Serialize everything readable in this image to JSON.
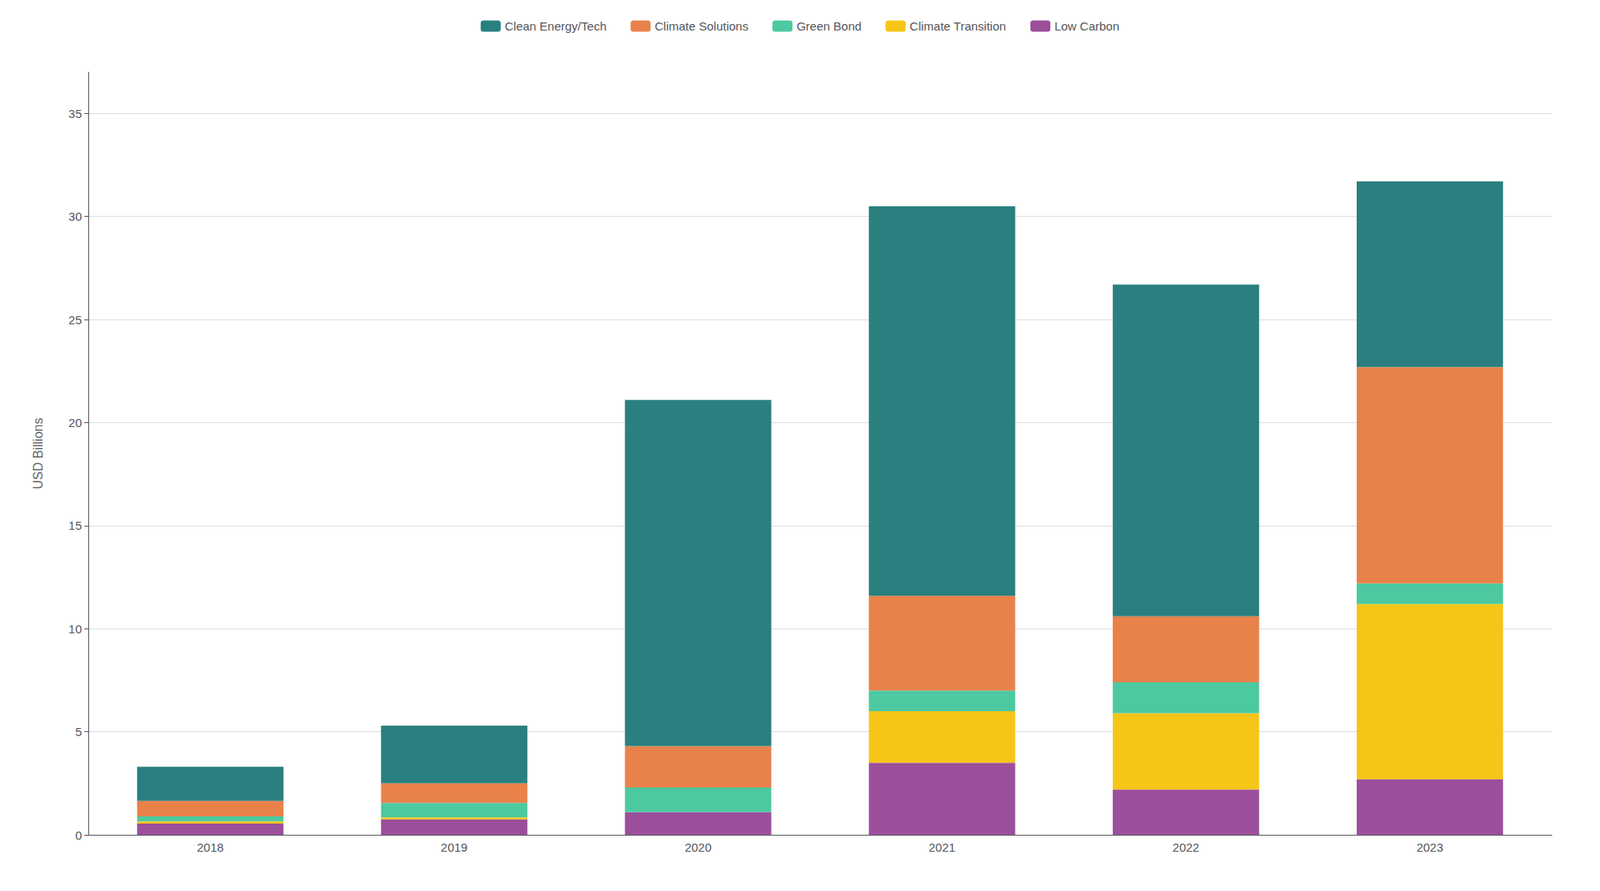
{
  "chart_data": {
    "type": "bar",
    "stacked": true,
    "categories": [
      "2018",
      "2019",
      "2020",
      "2021",
      "2022",
      "2023"
    ],
    "series": [
      {
        "name": "Low Carbon",
        "color": "#9b4f9b",
        "values": [
          0.55,
          0.75,
          1.1,
          3.5,
          2.2,
          2.7
        ]
      },
      {
        "name": "Climate Transition",
        "color": "#f5c518",
        "values": [
          0.1,
          0.1,
          0.0,
          2.5,
          3.7,
          8.5
        ]
      },
      {
        "name": "Green Bond",
        "color": "#4cc9a0",
        "values": [
          0.25,
          0.7,
          1.2,
          1.0,
          1.5,
          1.0
        ]
      },
      {
        "name": "Climate Solutions",
        "color": "#e8824a",
        "values": [
          0.75,
          0.95,
          2.0,
          4.6,
          3.2,
          10.5
        ]
      },
      {
        "name": "Clean Energy/Tech",
        "color": "#2a7f7f",
        "values": [
          1.65,
          2.8,
          16.8,
          18.9,
          16.1,
          9.0
        ]
      }
    ],
    "ylabel": "USD Billions",
    "ylim": [
      0,
      37
    ],
    "yticks": [
      0,
      5,
      10,
      15,
      20,
      25,
      30,
      35
    ],
    "grid": true,
    "legend": "top"
  }
}
